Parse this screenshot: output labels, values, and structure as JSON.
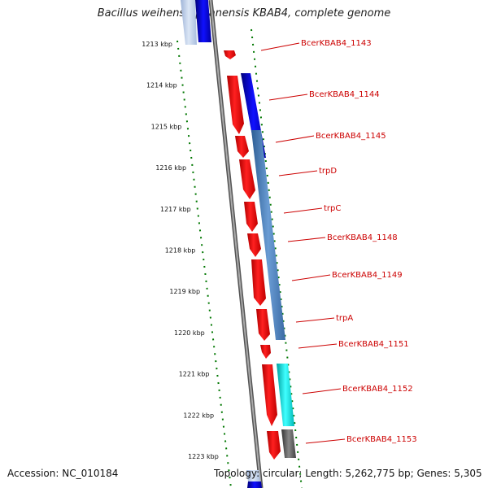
{
  "title": "Bacillus weihenstephanensis KBAB4, complete genome",
  "footer": {
    "accession": "Accession: NC_010184",
    "topology": "Topology: circular; Length: 5,262,775 bp; Genes: 5,305"
  },
  "colors": {
    "forward_gene": "#ff0000",
    "reverse_blue": "#0000ee",
    "reverse_steel": "#4f84c0",
    "reverse_cyan": "#00e8e8",
    "reverse_gray": "#666666",
    "label": "#cc0000",
    "ruler": "#007700",
    "backbone": "#888888"
  },
  "ruler_ticks": [
    "1213 kbp",
    "1214 kbp",
    "1215 kbp",
    "1216 kbp",
    "1217 kbp",
    "1218 kbp",
    "1219 kbp",
    "1220 kbp",
    "1221 kbp",
    "1222 kbp",
    "1223 kbp"
  ],
  "gene_labels": [
    "BcerKBAB4_1143",
    "BcerKBAB4_1144",
    "BcerKBAB4_1145",
    "trpD",
    "trpC",
    "BcerKBAB4_1148",
    "BcerKBAB4_1149",
    "trpA",
    "BcerKBAB4_1151",
    "BcerKBAB4_1152",
    "BcerKBAB4_1153"
  ]
}
